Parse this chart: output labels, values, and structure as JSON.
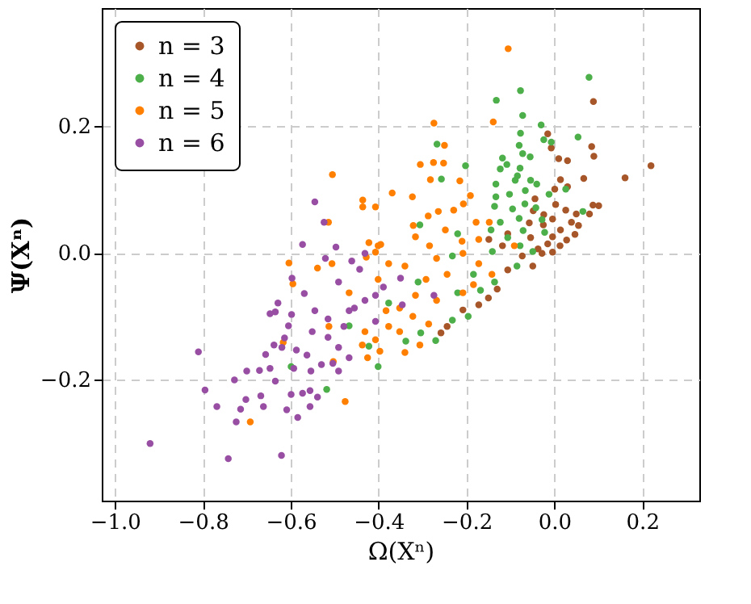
{
  "chart_data": {
    "type": "scatter",
    "xlabel": "Ω(Xⁿ)",
    "ylabel": "Ψ(Xⁿ)",
    "xlim": [
      -1.03,
      0.33
    ],
    "ylim": [
      -0.39,
      0.385
    ],
    "xticks": [
      {
        "value": -1.0,
        "label": "−1.0"
      },
      {
        "value": -0.8,
        "label": "−0.8"
      },
      {
        "value": -0.6,
        "label": "−0.6"
      },
      {
        "value": -0.4,
        "label": "−0.4"
      },
      {
        "value": -0.2,
        "label": "−0.2"
      },
      {
        "value": 0,
        "label": "0.0"
      },
      {
        "value": 0.2,
        "label": "0.2"
      }
    ],
    "yticks": [
      {
        "value": -0.2,
        "label": "−0.2"
      },
      {
        "value": 0,
        "label": "0.0"
      },
      {
        "value": 0.2,
        "label": "0.2"
      }
    ],
    "grid": true,
    "legend": "top left",
    "marker": "circle",
    "series": [
      {
        "name": "n = 3",
        "color": "#a65628",
        "x": [
          0.089,
          -0.015,
          -0.007,
          0.085,
          0.09,
          0.22,
          0.01,
          0.03,
          0.161,
          0.067,
          0.014,
          0.03,
          0.001,
          -0.044,
          0.003,
          0.088,
          0.101,
          0.026,
          0.05,
          -0.048,
          -0.024,
          0.08,
          -0.004,
          0.039,
          0.055,
          -0.057,
          -0.025,
          0.014,
          -0.106,
          0.047,
          -0.004,
          0.028,
          -0.054,
          -0.015,
          0.013,
          -0.149,
          -0.118,
          -0.037,
          -0.004,
          -0.049,
          -0.106,
          -0.13,
          -0.15,
          -0.172,
          -0.208,
          -0.244,
          -0.258,
          -0.073,
          -0.028
        ],
        "values": [
          0.238,
          0.187,
          0.165,
          0.167,
          0.152,
          0.137,
          0.148,
          0.145,
          0.118,
          0.117,
          0.115,
          0.104,
          0.1,
          0.085,
          0.076,
          0.075,
          0.074,
          0.067,
          0.061,
          0.066,
          0.06,
          0.061,
          0.053,
          0.048,
          0.043,
          0.047,
          0.044,
          0.036,
          0.03,
          0.029,
          0.025,
          0.02,
          0.024,
          0.014,
          0.011,
          0.021,
          0.011,
          0.006,
          0.001,
          -0.021,
          -0.027,
          -0.057,
          -0.071,
          -0.082,
          -0.09,
          -0.116,
          -0.126,
          -0.005,
          -0.001
        ]
      },
      {
        "name": "n = 4",
        "color": "#4daf4a",
        "x": [
          0.079,
          -0.077,
          -0.132,
          -0.072,
          -0.03,
          -0.077,
          0.054,
          -0.024,
          -0.007,
          -0.267,
          -0.08,
          -0.072,
          -0.055,
          -0.118,
          -0.108,
          -0.202,
          -0.123,
          -0.078,
          -0.257,
          -0.084,
          -0.089,
          -0.054,
          -0.133,
          -0.04,
          -0.102,
          -0.133,
          -0.066,
          0.026,
          -0.012,
          -0.136,
          -0.095,
          -0.042,
          -0.067,
          0.065,
          -0.123,
          -0.08,
          -0.028,
          -0.22,
          -0.144,
          -0.071,
          -0.022,
          -0.106,
          -0.306,
          -0.078,
          -0.141,
          -0.049,
          -0.196,
          -0.232,
          -0.27,
          -0.304,
          -0.338,
          -0.136,
          -0.168,
          -0.085,
          -0.184,
          -0.232,
          -0.31,
          -0.22,
          -0.518,
          -0.401,
          -0.599,
          -0.422,
          -0.467,
          -0.377
        ],
        "values": [
          0.276,
          0.255,
          0.24,
          0.216,
          0.201,
          0.188,
          0.182,
          0.178,
          0.174,
          0.171,
          0.169,
          0.156,
          0.151,
          0.149,
          0.139,
          0.137,
          0.132,
          0.133,
          0.116,
          0.121,
          0.114,
          0.114,
          0.108,
          0.108,
          0.092,
          0.088,
          0.098,
          0.1,
          0.092,
          0.073,
          0.069,
          0.071,
          0.077,
          0.065,
          0.048,
          0.054,
          0.052,
          0.03,
          0.036,
          0.035,
          0.032,
          0.024,
          0.044,
          0.011,
          0.002,
          0.002,
          -0.1,
          -0.106,
          -0.138,
          -0.126,
          -0.139,
          -0.046,
          -0.059,
          -0.021,
          -0.034,
          -0.005,
          -0.046,
          -0.063,
          -0.215,
          -0.179,
          -0.179,
          -0.147,
          -0.115,
          -0.079
        ]
      },
      {
        "name": "n = 5",
        "color": "#ff7f00",
        "x": [
          -0.105,
          -0.274,
          -0.139,
          -0.25,
          -0.305,
          -0.275,
          -0.252,
          -0.282,
          -0.215,
          -0.323,
          -0.191,
          -0.207,
          -0.229,
          -0.264,
          -0.287,
          -0.321,
          -0.178,
          -0.148,
          -0.316,
          -0.248,
          -0.21,
          -0.172,
          -0.284,
          -0.091,
          -0.34,
          -0.306,
          -0.352,
          -0.286,
          -0.322,
          -0.268,
          -0.208,
          -0.184,
          -0.142,
          -0.292,
          -0.244,
          -0.34,
          -0.268,
          -0.208,
          -0.172,
          -0.316,
          -0.352,
          -0.476,
          -0.692,
          -0.604,
          -0.595,
          -0.539,
          -0.506,
          -0.617,
          -0.513,
          -0.431,
          -0.425,
          -0.397,
          -0.437,
          -0.407,
          -0.377,
          -0.401,
          -0.428,
          -0.401,
          -0.377,
          -0.503,
          -0.467,
          -0.383,
          -0.505,
          -0.436,
          -0.436,
          -0.407,
          -0.369,
          -0.514,
          -0.422,
          -0.395,
          -0.407
        ],
        "values": [
          0.321,
          0.204,
          0.206,
          0.169,
          0.139,
          0.142,
          0.141,
          0.115,
          0.113,
          0.088,
          0.09,
          0.077,
          0.067,
          0.065,
          0.058,
          0.043,
          0.048,
          0.048,
          0.025,
          0.036,
          0.018,
          0.021,
          0.011,
          0.011,
          -0.157,
          -0.145,
          -0.124,
          -0.112,
          -0.1,
          -0.075,
          -0.063,
          -0.05,
          -0.034,
          -0.042,
          -0.034,
          -0.021,
          -0.009,
          -0.001,
          -0.017,
          -0.067,
          -0.087,
          -0.234,
          -0.266,
          -0.016,
          -0.049,
          -0.024,
          -0.017,
          -0.141,
          -0.116,
          -0.124,
          -0.165,
          -0.155,
          -0.145,
          -0.137,
          -0.116,
          -0.042,
          -0.007,
          0.011,
          -0.017,
          -0.171,
          -0.063,
          -0.091,
          0.123,
          0.083,
          0.072,
          0.072,
          0.094,
          0.048,
          0.016,
          0.013,
          0.001
        ]
      },
      {
        "name": "n = 6",
        "color": "#984ea3",
        "x": [
          -0.35,
          -0.274,
          -0.346,
          -0.92,
          -0.742,
          -0.621,
          -0.81,
          -0.795,
          -0.768,
          -0.724,
          -0.714,
          -0.702,
          -0.728,
          -0.7,
          -0.668,
          -0.662,
          -0.671,
          -0.647,
          -0.635,
          -0.609,
          -0.584,
          -0.599,
          -0.573,
          -0.556,
          -0.539,
          -0.556,
          -0.657,
          -0.638,
          -0.62,
          -0.614,
          -0.605,
          -0.587,
          -0.563,
          -0.593,
          -0.554,
          -0.53,
          -0.504,
          -0.491,
          -0.467,
          -0.635,
          -0.647,
          -0.629,
          -0.598,
          -0.569,
          -0.597,
          -0.521,
          -0.491,
          -0.497,
          -0.573,
          -0.545,
          -0.515,
          -0.551,
          -0.515,
          -0.479,
          -0.455,
          -0.431,
          -0.407,
          -0.443,
          -0.467,
          -0.407,
          -0.491,
          -0.389,
          -0.431,
          -0.461,
          -0.545,
          -0.524
        ],
        "values": [
          -0.04,
          -0.067,
          -0.082,
          -0.3,
          -0.324,
          -0.319,
          -0.156,
          -0.216,
          -0.242,
          -0.266,
          -0.246,
          -0.231,
          -0.2,
          -0.186,
          -0.225,
          -0.242,
          -0.185,
          -0.182,
          -0.202,
          -0.247,
          -0.259,
          -0.223,
          -0.221,
          -0.217,
          -0.227,
          -0.242,
          -0.16,
          -0.145,
          -0.149,
          -0.134,
          -0.115,
          -0.153,
          -0.161,
          -0.182,
          -0.186,
          -0.176,
          -0.174,
          -0.186,
          -0.165,
          -0.093,
          -0.096,
          -0.079,
          -0.097,
          -0.064,
          -0.04,
          -0.009,
          -0.046,
          0.009,
          0.013,
          -0.091,
          -0.104,
          -0.124,
          -0.133,
          -0.116,
          -0.087,
          -0.075,
          -0.067,
          -0.026,
          -0.091,
          -0.108,
          -0.149,
          -0.054,
          -0.001,
          -0.013,
          0.08,
          0.048
        ]
      }
    ]
  }
}
